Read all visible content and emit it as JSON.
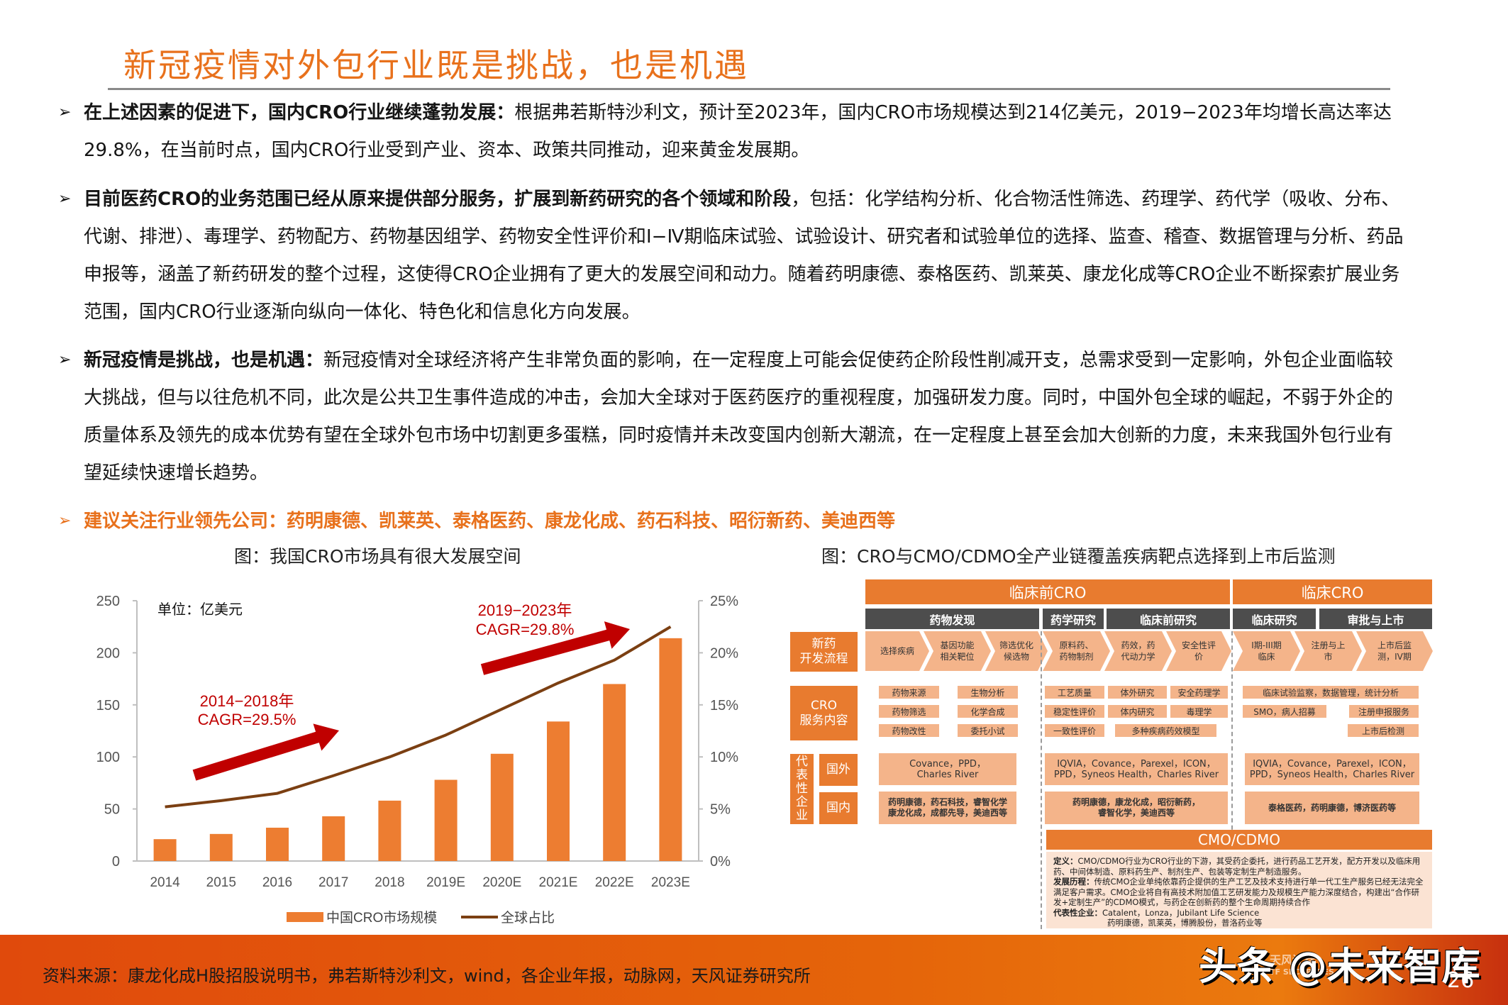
{
  "page": {
    "title": "新冠疫情对外包行业既是挑战，也是机遇",
    "page_number": "26"
  },
  "bullets": [
    {
      "bold": "在上述因素的促进下，国内CRO行业继续蓬勃发展：",
      "text": "根据弗若斯特沙利文，预计至2023年，国内CRO市场规模达到214亿美元，2019−2023年均增长高达率达29.8%，在当前时点，国内CRO行业受到产业、资本、政策共同推动，迎来黄金发展期。"
    },
    {
      "bold": "目前医药CRO的业务范围已经从原来提供部分服务，扩展到新药研究的各个领域和阶段",
      "text": "，包括：化学结构分析、化合物活性筛选、药理学、药代学（吸收、分布、代谢、排泄）、毒理学、药物配方、药物基因组学、药物安全性评价和Ⅰ−Ⅳ期临床试验、试验设计、研究者和试验单位的选择、监查、稽查、数据管理与分析、药品申报等，涵盖了新药研发的整个过程，这使得CRO企业拥有了更大的发展空间和动力。随着药明康德、泰格医药、凯莱英、康龙化成等CRO企业不断探索扩展业务范围，国内CRO行业逐渐向纵向一体化、特色化和信息化方向发展。"
    },
    {
      "bold": "新冠疫情是挑战，也是机遇：",
      "text": "新冠疫情对全球经济将产生非常负面的影响，在一定程度上可能会促使药企阶段性削减开支，总需求受到一定影响，外包企业面临较大挑战，但与以往危机不同，此次是公共卫生事件造成的冲击，会加大全球对于医药医疗的重视程度，加强研发力度。同时，中国外包全球的崛起，不弱于外企的质量体系及领先的成本优势有望在全球外包市场中切割更多蛋糕，同时疫情并未改变国内创新大潮流，在一定程度上甚至会加大创新的力度，未来我国外包行业有望延续快速增长趋势。"
    },
    {
      "bold": "建议关注行业领先公司：药明康德、凯莱英、泰格医药、康龙化成、药石科技、昭衍新药、美迪西等",
      "text": ""
    }
  ],
  "bullet_glyph": "➢",
  "chart_caption": "图：我国CRO市场具有很大发展空间",
  "diagram_caption": "图：CRO与CMO/CDMO全产业链覆盖疾病靶点选择到上市后监测",
  "chart_data": {
    "type": "bar",
    "title": "图：我国CRO市场具有很大发展空间",
    "unit_label": "单位：亿美元",
    "categories": [
      "2014",
      "2015",
      "2016",
      "2017",
      "2018",
      "2019E",
      "2020E",
      "2021E",
      "2022E",
      "2023E"
    ],
    "series": [
      {
        "name": "中国CRO市场规模",
        "type": "bar",
        "axis": "left",
        "color": "#ED7D31",
        "values": [
          21,
          26,
          32,
          43,
          58,
          78,
          103,
          134,
          170,
          214
        ]
      },
      {
        "name": "全球占比",
        "type": "line",
        "axis": "right",
        "color": "#7B3F12",
        "values": [
          5.2,
          5.8,
          6.5,
          8.2,
          10.0,
          12.1,
          14.6,
          17.1,
          19.3,
          22.5
        ]
      }
    ],
    "ylim": [
      0,
      250
    ],
    "yticks": [
      "0",
      "50",
      "100",
      "150",
      "200",
      "250"
    ],
    "y2lim": [
      0,
      25
    ],
    "y2ticks": [
      "0%",
      "5%",
      "10%",
      "15%",
      "20%",
      "25%"
    ],
    "annotations": [
      {
        "text1": "2014−2018年",
        "text2": "CAGR=29.5%",
        "color": "#C00000"
      },
      {
        "text1": "2019−2023年",
        "text2": "CAGR=29.8%",
        "color": "#C00000"
      }
    ],
    "legend": [
      "中国CRO市场规模",
      "全球占比"
    ],
    "legend_position": "bottom",
    "grid": false
  },
  "diagram": {
    "top_headers": [
      "临床前CRO",
      "临床CRO"
    ],
    "stage_headers": [
      "药物发现",
      "药学研究",
      "临床前研究",
      "临床研究",
      "审批与上市"
    ],
    "row_labels": {
      "process": "新药\n开发流程",
      "services": "CRO\n服务内容",
      "companies": "代\n表\n性\n企\n业",
      "foreign": "国外",
      "domestic": "国内"
    },
    "process_steps": [
      "选择疾病",
      "基因功能\n相关靶位",
      "筛选优化\n候选物",
      "原料药、\n药物制剂",
      "药效，药\n代动力学",
      "安全性评\n价",
      "I期-III期\n临床",
      "注册与上\n市",
      "上市后监\n测，IV期"
    ],
    "services": {
      "discovery": [
        "药物来源",
        "生物分析",
        "药物筛选",
        "化学合成",
        "药物改性",
        "委托小试"
      ],
      "pharma": [
        "工艺质量",
        "稳定性评价",
        "一致性评价"
      ],
      "preclinical": [
        "体外研究",
        "安全药理学",
        "体内研究",
        "毒理学",
        "多种疾病药效模型"
      ],
      "clinical": [
        "临床试验监察，数据管理，统计分析",
        "SMO，病人招募",
        "注册申报服务",
        "上市后检测"
      ]
    },
    "companies": {
      "discovery_foreign": "Covance，PPD，\nCharles River",
      "discovery_domestic": "药明康德，药石科技，睿智化学\n康龙化成，成都先导，美迪西等",
      "preclinical_foreign": "IQVIA，Covance，Parexel，ICON，\nPPD，Syneos Health，Charles River",
      "preclinical_domestic": "药明康德，康龙化成，昭衍新药，\n睿智化学，美迪西等",
      "clinical_foreign": "IQVIA，Covance，Parexel，ICON，\nPPD，Syneos Health，Charles River",
      "clinical_domestic": "泰格医药，药明康德，博济医药等"
    },
    "cmo": {
      "header": "CMO/CDMO",
      "def_label": "定义：",
      "def_text": "CMO/CDMO行业为CRO行业的下游，其受药企委托，进行药品工艺开发，配方开发以及临床用药、中间体制造、原料药生产、制剂生产、包装等定制生产制造服务。",
      "history_label": "发展历程：",
      "history_text": "传统CMO企业单纯依靠药企提供的生产工艺及技术支持进行单一代工生产服务已经无法完全满足客户需求。CMO企业将自有高技术附加值工艺研发能力及规模生产能力深度结合，构建出“合作研发+定制生产”的CDMO模式，与药企在创新药的整个生命周期持续合作",
      "companies_label": "代表性企业：",
      "companies_line1": "Catalent，Lonza，Jubilant Life Science",
      "companies_line2": "药明康德，凯莱英，博腾股份，普洛药业等"
    }
  },
  "footer": {
    "source": "资料来源：康龙化成H股招股说明书，弗若斯特沙利文，wind，各企业年报，动脉网，天风证券研究所",
    "watermark": "头条 @未来智库",
    "logo_cn": "天风证券",
    "logo_en": "TF SECURITIES"
  },
  "colors": {
    "accent_orange": "#E8711C",
    "bar_orange": "#ED7D31",
    "line_brown": "#7B3F12",
    "cagr_red": "#C00000",
    "diagram_orange": "#E87B2F",
    "diagram_light": "#F4B48A",
    "diagram_gray": "#4D4D4D"
  }
}
